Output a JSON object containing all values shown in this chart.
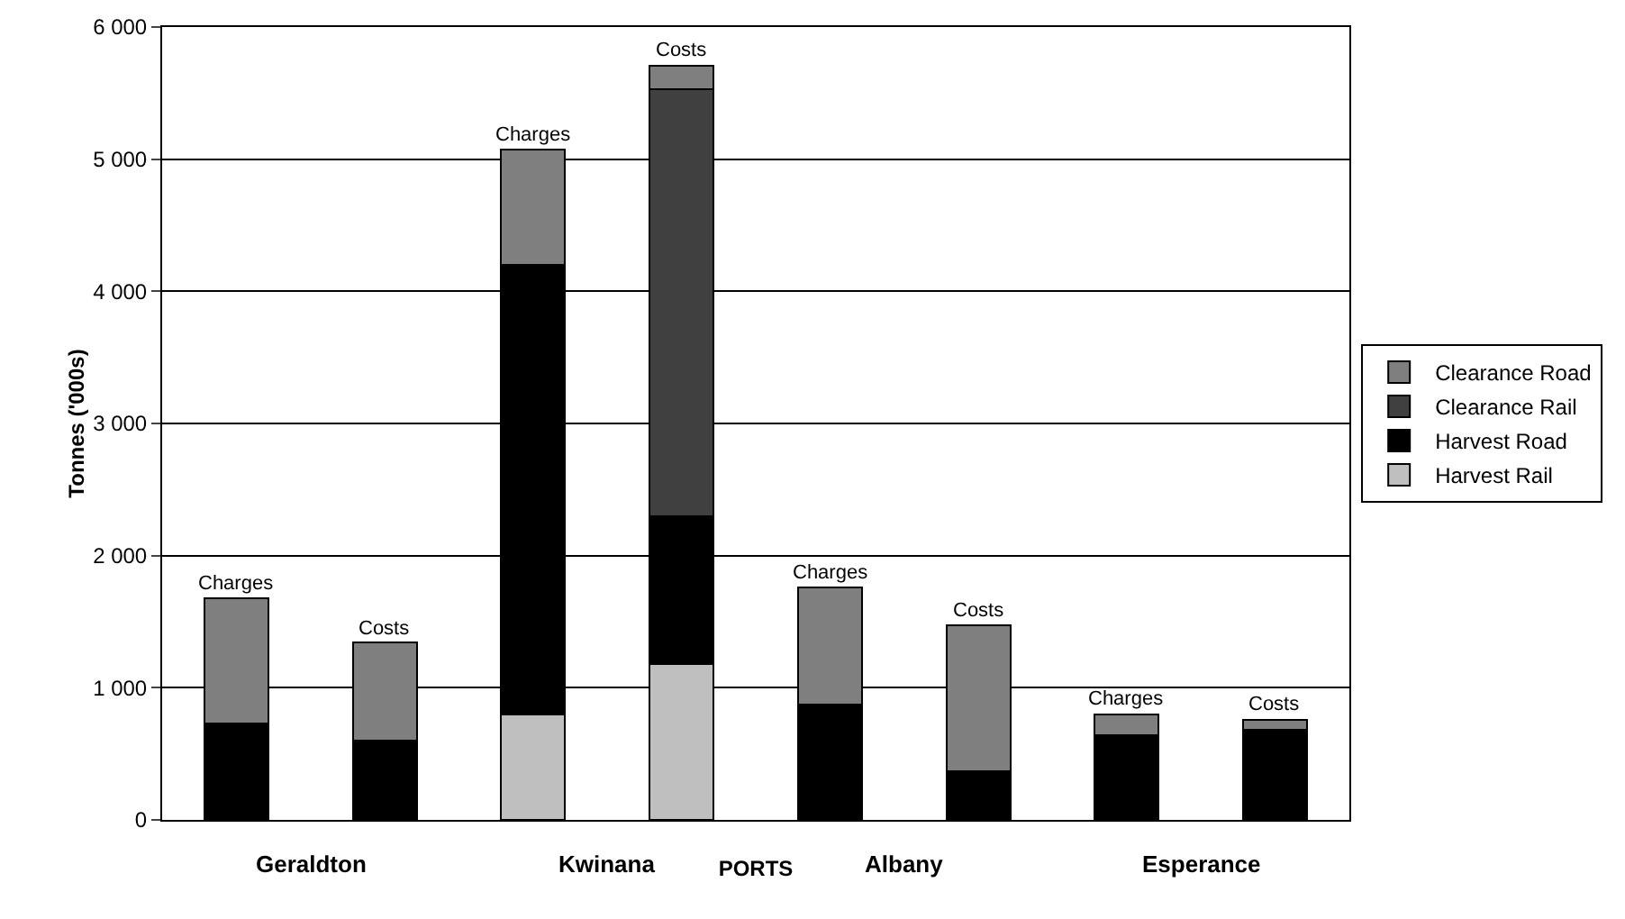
{
  "chart_data": {
    "type": "bar",
    "stacked": true,
    "xlabel": "PORTS",
    "ylabel": "Tonnes ('000s)",
    "categories": [
      "Charges",
      "Costs",
      "Charges",
      "Costs",
      "Charges",
      "Costs",
      "Charges",
      "Costs"
    ],
    "annotations": [
      "Geraldton",
      "Kwinana",
      "Albany",
      "Esperance"
    ],
    "series": [
      {
        "name": "Harvest Rail",
        "color": "#bfbfbf",
        "values": [
          0,
          0,
          800,
          1180,
          0,
          0,
          0,
          0
        ]
      },
      {
        "name": "Harvest Road",
        "color": "#000000",
        "values": [
          730,
          600,
          3400,
          1120,
          870,
          370,
          640,
          680
        ]
      },
      {
        "name": "Clearance Rail",
        "color": "#404040",
        "values": [
          0,
          0,
          0,
          3230,
          0,
          0,
          0,
          0
        ]
      },
      {
        "name": "Clearance Road",
        "color": "#7f7f7f",
        "values": [
          950,
          740,
          870,
          180,
          890,
          1100,
          160,
          80
        ]
      }
    ],
    "ylim": [
      0,
      6000
    ],
    "yticks": [
      0,
      {
        "value": 1000,
        "label": "1 000"
      },
      {
        "value": 2000,
        "label": "2 000"
      },
      {
        "value": 3000,
        "label": "3 000"
      },
      {
        "value": 4000,
        "label": "4 000"
      },
      {
        "value": 5000,
        "label": "5 000"
      },
      {
        "value": 6000,
        "label": "6 000"
      }
    ],
    "grid": "y",
    "legend": "right",
    "tick_labels": "y"
  }
}
